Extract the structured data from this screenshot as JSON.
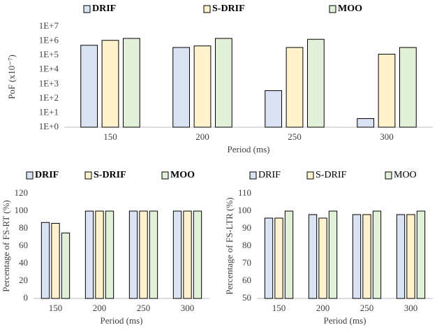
{
  "chart_data": [
    {
      "type": "bar",
      "log_scale": true,
      "legend": "top",
      "legend_bold": true,
      "categories": [
        "150",
        "200",
        "250",
        "300"
      ],
      "series": [
        {
          "name": "DRIF",
          "color": "#dae3f3",
          "values": [
            500000,
            350000,
            350,
            4
          ]
        },
        {
          "name": "S-DRIF",
          "color": "#fff2cc",
          "values": [
            1100000,
            450000,
            350000,
            120000
          ]
        },
        {
          "name": "MOO",
          "color": "#e2f0d9",
          "values": [
            1500000,
            1500000,
            1300000,
            350000
          ]
        }
      ],
      "ylim": [
        1,
        10000000
      ],
      "yticks": [
        {
          "value": 1,
          "label": "1E+0"
        },
        {
          "value": 10,
          "label": "1E+1"
        },
        {
          "value": 100,
          "label": "1E+2"
        },
        {
          "value": 1000,
          "label": "1E+3"
        },
        {
          "value": 10000,
          "label": "1E+4"
        },
        {
          "value": 100000,
          "label": "1E+5"
        },
        {
          "value": 1000000,
          "label": "1E+6"
        },
        {
          "value": 10000000,
          "label": "1E+7"
        }
      ],
      "y_label": "PoF (x10⁻⁷)",
      "x_label": "Period (ms)"
    },
    {
      "type": "bar",
      "log_scale": false,
      "legend": "top",
      "legend_bold": true,
      "categories": [
        "150",
        "200",
        "250",
        "300"
      ],
      "series": [
        {
          "name": "DRIF",
          "color": "#dae3f3",
          "values": [
            87,
            100,
            100,
            100
          ]
        },
        {
          "name": "S-DRIF",
          "color": "#fff2cc",
          "values": [
            86,
            100,
            100,
            100
          ]
        },
        {
          "name": "MOO",
          "color": "#e2f0d9",
          "values": [
            75,
            100,
            100,
            100
          ]
        }
      ],
      "ylim": [
        0,
        120
      ],
      "yticks": [
        0,
        20,
        40,
        60,
        80,
        100,
        120
      ],
      "y_label": "Percentage of FS-RT (%)",
      "x_label": "Period (ms)"
    },
    {
      "type": "bar",
      "log_scale": false,
      "legend": "top",
      "legend_bold": false,
      "categories": [
        "150",
        "200",
        "250",
        "300"
      ],
      "series": [
        {
          "name": "DRIF",
          "color": "#dae3f3",
          "values": [
            96,
            98,
            98,
            98
          ]
        },
        {
          "name": "S-DRIF",
          "color": "#fff2cc",
          "values": [
            96,
            96,
            98,
            98
          ]
        },
        {
          "name": "MOO",
          "color": "#e2f0d9",
          "values": [
            100,
            100,
            100,
            100
          ]
        }
      ],
      "ylim": [
        50,
        110
      ],
      "yticks": [
        50,
        60,
        70,
        80,
        90,
        100,
        110
      ],
      "y_label": "Percentage of FS-LTR (%)",
      "x_label": "Period (ms)"
    }
  ]
}
